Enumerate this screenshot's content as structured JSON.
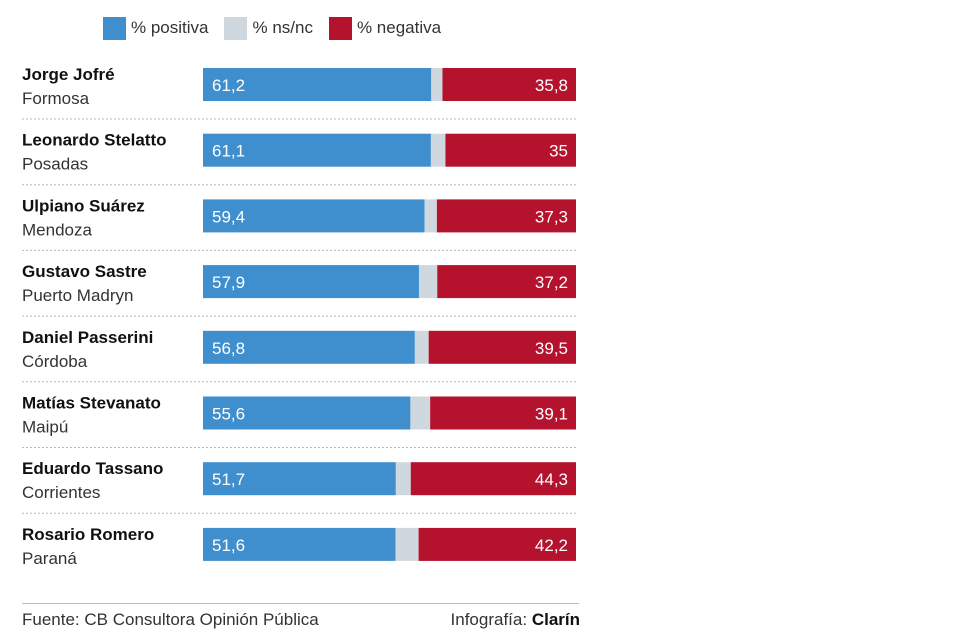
{
  "chart_data": {
    "type": "bar",
    "stacked": true,
    "orientation": "horizontal",
    "legend": [
      {
        "label": "% positiva",
        "color": "#3f8fcf"
      },
      {
        "label": "% ns/nc",
        "color": "#cfd8de"
      },
      {
        "label": "% negativa",
        "color": "#b5122e"
      }
    ],
    "rows": [
      {
        "name": "Jorge Jofré",
        "city": "Formosa",
        "positiva": 61.2,
        "nsnc": 3.0,
        "negativa": 35.8,
        "pos_label": "61,2",
        "neg_label": "35,8"
      },
      {
        "name": "Leonardo Stelatto",
        "city": "Posadas",
        "positiva": 61.1,
        "nsnc": 3.9,
        "negativa": 35,
        "pos_label": "61,1",
        "neg_label": "35"
      },
      {
        "name": "Ulpiano Suárez",
        "city": "Mendoza",
        "positiva": 59.4,
        "nsnc": 3.3,
        "negativa": 37.3,
        "pos_label": "59,4",
        "neg_label": "37,3"
      },
      {
        "name": "Gustavo Sastre",
        "city": "Puerto Madryn",
        "positiva": 57.9,
        "nsnc": 4.9,
        "negativa": 37.2,
        "pos_label": "57,9",
        "neg_label": "37,2"
      },
      {
        "name": "Daniel Passerini",
        "city": "Córdoba",
        "positiva": 56.8,
        "nsnc": 3.7,
        "negativa": 39.5,
        "pos_label": "56,8",
        "neg_label": "39,5"
      },
      {
        "name": "Matías Stevanato",
        "city": "Maipú",
        "positiva": 55.6,
        "nsnc": 5.3,
        "negativa": 39.1,
        "pos_label": "55,6",
        "neg_label": "39,1"
      },
      {
        "name": "Eduardo Tassano",
        "city": "Corrientes",
        "positiva": 51.7,
        "nsnc": 4.0,
        "negativa": 44.3,
        "pos_label": "51,7",
        "neg_label": "44,3"
      },
      {
        "name": "Rosario Romero",
        "city": "Paraná",
        "positiva": 51.6,
        "nsnc": 6.2,
        "negativa": 42.2,
        "pos_label": "51,6",
        "neg_label": "42,2"
      }
    ]
  },
  "footer": {
    "source": "Fuente: CB Consultora Opinión Pública",
    "credit_prefix": "Infografía:",
    "credit_brand": "Clarín"
  }
}
